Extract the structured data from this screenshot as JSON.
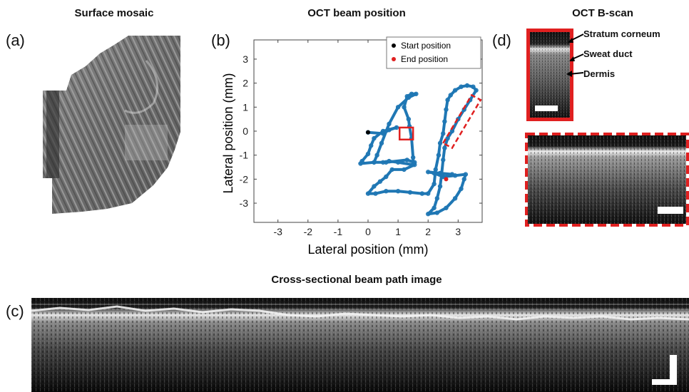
{
  "panels": {
    "a": {
      "label": "(a)",
      "title": "Surface mosaic"
    },
    "b": {
      "label": "(b)",
      "title": "OCT beam position"
    },
    "c": {
      "label": "(c)",
      "title": "Cross-sectional beam path image"
    },
    "d": {
      "label": "(d)",
      "title": "OCT B-scan",
      "annotations": [
        "Stratum corneum",
        "Sweat duct",
        "Dermis"
      ]
    }
  },
  "chart_data": {
    "type": "scatter",
    "xlabel": "Lateral position (mm)",
    "ylabel": "Lateral position (mm)",
    "xlim": [
      -3.8,
      3.8
    ],
    "ylim": [
      -3.8,
      3.8
    ],
    "xticks": [
      -3,
      -2,
      -1,
      0,
      1,
      2,
      3
    ],
    "yticks": [
      -3,
      -2,
      -1,
      0,
      1,
      2,
      3
    ],
    "grid": false,
    "legend": {
      "position": "top-right",
      "entries": [
        {
          "label": "Start position",
          "color": "#000000"
        },
        {
          "label": "End position",
          "color": "#e02020"
        }
      ]
    },
    "series": [
      {
        "color": "#1f77b4",
        "points": [
          [
            0.0,
            -0.05
          ],
          [
            0.5,
            -0.1
          ],
          [
            0.7,
            0.05
          ],
          [
            0.95,
            0.15
          ],
          [
            0.5,
            0.0
          ],
          [
            0.2,
            -0.3
          ],
          [
            0.1,
            -0.6
          ],
          [
            0.0,
            -0.95
          ],
          [
            -0.2,
            -1.25
          ],
          [
            -0.25,
            -1.35
          ],
          [
            0.2,
            -1.3
          ],
          [
            0.5,
            -1.3
          ],
          [
            0.7,
            -1.25
          ],
          [
            1.0,
            -1.3
          ],
          [
            1.5,
            -1.4
          ],
          [
            1.5,
            -1.1
          ],
          [
            1.45,
            -0.3
          ],
          [
            1.38,
            0.2
          ],
          [
            1.35,
            0.5
          ],
          [
            1.2,
            1.0
          ],
          [
            1.3,
            1.45
          ],
          [
            1.45,
            1.55
          ],
          [
            1.6,
            1.55
          ],
          [
            1.35,
            1.4
          ],
          [
            1.0,
            1.0
          ],
          [
            0.7,
            0.3
          ],
          [
            0.45,
            -0.5
          ],
          [
            0.3,
            -1.0
          ],
          [
            0.2,
            -1.3
          ],
          [
            0.6,
            -1.3
          ],
          [
            1.3,
            -1.2
          ],
          [
            1.55,
            -1.3
          ],
          [
            1.55,
            -1.4
          ],
          [
            1.2,
            -1.6
          ],
          [
            0.8,
            -1.6
          ],
          [
            0.6,
            -1.9
          ],
          [
            0.4,
            -2.1
          ],
          [
            0.2,
            -2.3
          ],
          [
            0.0,
            -2.6
          ],
          [
            0.25,
            -2.6
          ],
          [
            0.6,
            -2.5
          ],
          [
            1.0,
            -2.5
          ],
          [
            1.4,
            -2.55
          ],
          [
            1.8,
            -2.6
          ],
          [
            2.0,
            -2.6
          ],
          [
            2.2,
            -2.2
          ],
          [
            2.25,
            -1.6
          ],
          [
            2.35,
            -1.0
          ],
          [
            2.4,
            -0.5
          ],
          [
            2.5,
            -0.1
          ],
          [
            2.55,
            0.4
          ],
          [
            2.6,
            0.9
          ],
          [
            2.65,
            1.3
          ],
          [
            2.75,
            1.5
          ],
          [
            2.9,
            1.7
          ],
          [
            3.1,
            1.85
          ],
          [
            3.3,
            1.9
          ],
          [
            3.5,
            1.85
          ],
          [
            3.6,
            1.7
          ],
          [
            3.4,
            1.3
          ],
          [
            3.2,
            0.9
          ],
          [
            3.0,
            0.5
          ],
          [
            2.8,
            0.0
          ],
          [
            2.65,
            -0.3
          ],
          [
            2.55,
            -0.7
          ],
          [
            2.5,
            -1.2
          ],
          [
            2.45,
            -1.8
          ],
          [
            2.4,
            -2.3
          ],
          [
            2.3,
            -2.8
          ],
          [
            2.2,
            -3.2
          ],
          [
            2.0,
            -3.45
          ],
          [
            2.3,
            -3.4
          ],
          [
            2.6,
            -3.2
          ],
          [
            2.9,
            -2.8
          ],
          [
            3.1,
            -2.4
          ],
          [
            3.2,
            -2.0
          ],
          [
            3.25,
            -1.8
          ],
          [
            2.9,
            -1.85
          ],
          [
            2.5,
            -1.9
          ],
          [
            2.2,
            -1.75
          ],
          [
            2.0,
            -1.7
          ],
          [
            2.4,
            -1.75
          ],
          [
            2.8,
            -1.8
          ]
        ]
      }
    ],
    "markers": {
      "start": [
        0.0,
        -0.05
      ],
      "end": [
        2.6,
        -2.0
      ]
    },
    "roi_solid": {
      "x": [
        1.05,
        1.5
      ],
      "y": [
        -0.35,
        0.15
      ],
      "color": "#e02020"
    },
    "roi_dashed": {
      "corners": [
        [
          2.5,
          -0.5
        ],
        [
          3.45,
          1.5
        ],
        [
          3.75,
          1.3
        ],
        [
          2.8,
          -0.7
        ]
      ],
      "color": "#e02020"
    }
  },
  "colors": {
    "roi": "#e02020",
    "trace": "#1f77b4",
    "scalebar": "#ffffff"
  }
}
